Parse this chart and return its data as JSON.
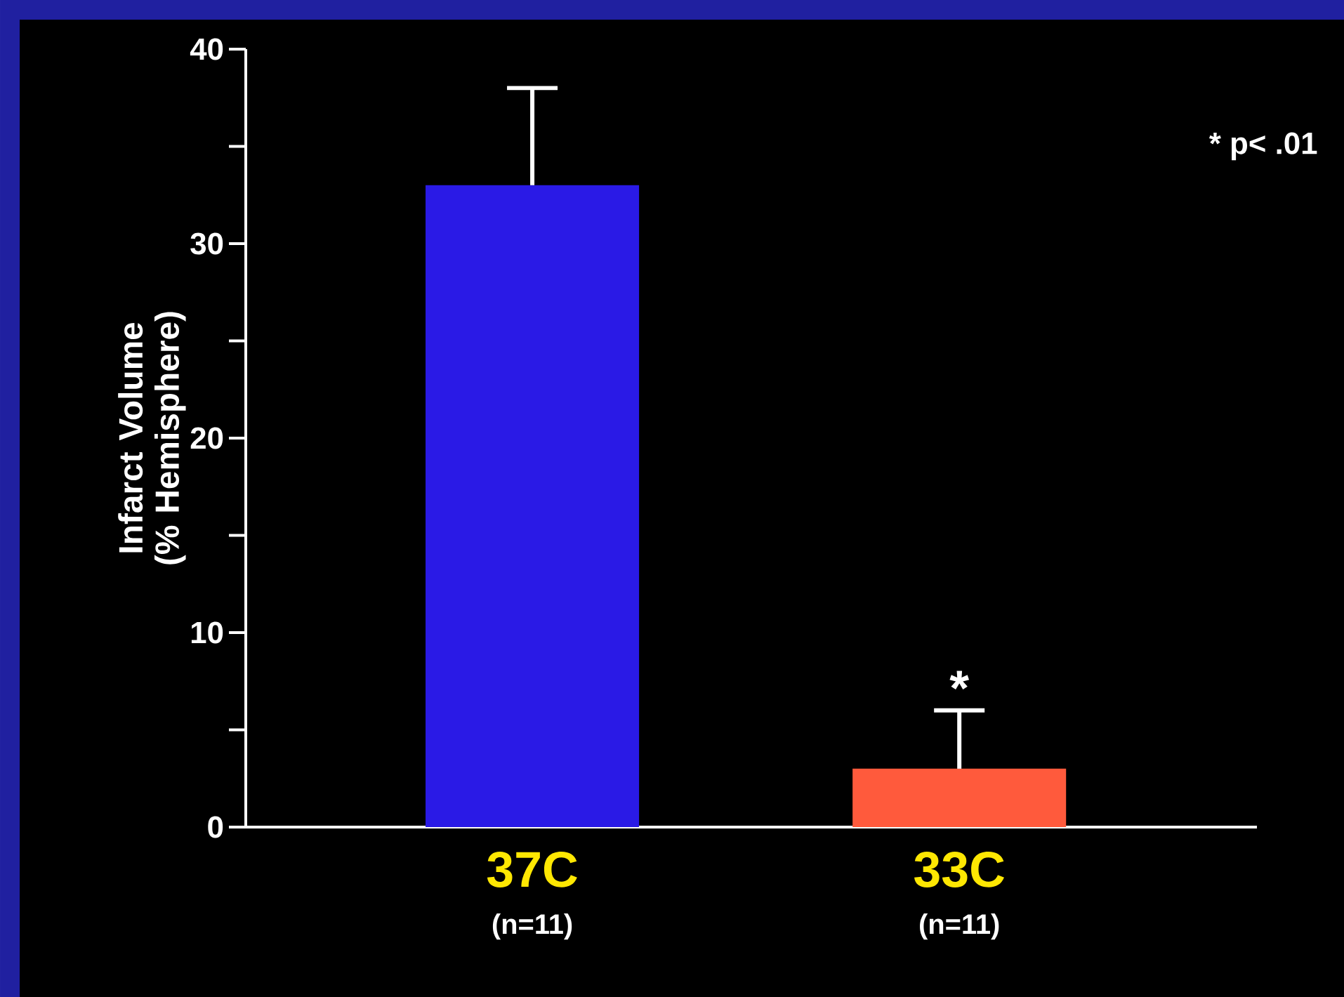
{
  "chart_data": {
    "type": "bar",
    "ylabel": "Infarct Volume (% Hemisphere)",
    "categories": [
      "37C",
      "33C"
    ],
    "values": [
      33,
      3
    ],
    "colors": [
      "#2a1ae6",
      "#ff5a3c"
    ],
    "errors": [
      [
        33,
        38
      ],
      [
        3,
        6
      ]
    ],
    "ylim": [
      0,
      40
    ],
    "yticks": [
      0,
      {
        "value": 5,
        "label": null
      },
      10,
      {
        "value": 15,
        "label": null
      },
      20,
      {
        "value": 25,
        "label": null
      },
      30,
      {
        "value": 35,
        "label": null
      },
      40
    ],
    "annotations": [
      "(n=11)",
      "(n=11)",
      "*",
      "* p< .01"
    ]
  }
}
